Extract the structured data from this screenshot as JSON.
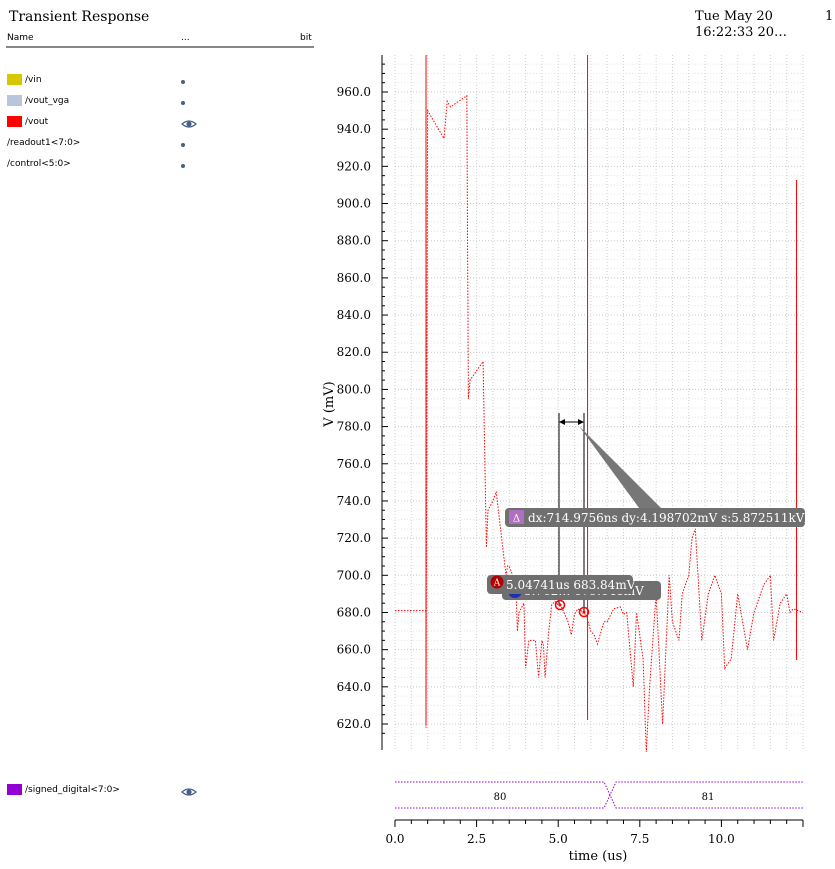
{
  "window": {
    "title": "Transient Response",
    "date": "Tue May 20",
    "time": "16:22:33 20…",
    "page_number": "1"
  },
  "signal_list": {
    "headers": {
      "name": "Name",
      "visibility": "...",
      "unit": "bit"
    },
    "signals": [
      {
        "name": "/vin",
        "color": "#d6c800",
        "visible": false
      },
      {
        "name": "/vout_vga",
        "color": "#b8c6dc",
        "visible": false
      },
      {
        "name": "/vout",
        "color": "#ff0000",
        "visible": true
      },
      {
        "name": "/readout1<7:0>",
        "color": "",
        "visible": false
      },
      {
        "name": "/control<5:0>",
        "color": "",
        "visible": false
      }
    ],
    "digital_signal": {
      "name": "/signed_digital<7:0>",
      "color": "#9400d3",
      "visible": true
    }
  },
  "plot": {
    "ylabel": "V (mV)",
    "xlabel": "time (us)",
    "y_ticks": [
      "960.0",
      "940.0",
      "920.0",
      "900.0",
      "880.0",
      "860.0",
      "840.0",
      "820.0",
      "800.0",
      "780.0",
      "760.0",
      "740.0",
      "720.0",
      "700.0",
      "680.0",
      "660.0",
      "640.0",
      "620.0"
    ],
    "x_ticks": [
      "0.0",
      "2.5",
      "5.0",
      "7.5",
      "10.0"
    ],
    "trace_color": "#ff0000",
    "digital_labels": [
      "80",
      "81"
    ],
    "marker_a_label": "5.04741us 683.84mV",
    "marker_a_icon": "A",
    "marker_b_label": "5.762… 679.641mV",
    "delta_label": "dx:714.9756ns dy:4.198702mV s:5.872511kV/s",
    "delta_icon": "Δ"
  },
  "chart_data": {
    "type": "line",
    "xlabel": "time (us)",
    "ylabel": "V (mV)",
    "xlim": [
      0,
      12.5
    ],
    "ylim": [
      605,
      978
    ],
    "series": [
      {
        "name": "/vout",
        "x": [
          0,
          0.9,
          0.95,
          0.95,
          1.0,
          1.5,
          1.6,
          1.7,
          2.2,
          2.25,
          2.3,
          2.7,
          2.8,
          2.85,
          3.0,
          3.1,
          3.4,
          3.45,
          3.5,
          3.7,
          3.75,
          3.8,
          3.95,
          4.0,
          4.1,
          4.3,
          4.4,
          4.5,
          4.55,
          4.6,
          4.7,
          4.8,
          4.9,
          5.0,
          5.05,
          5.1,
          5.3,
          5.4,
          5.5,
          5.6,
          5.7,
          5.76,
          5.8,
          5.9,
          6.0,
          6.1,
          6.2,
          6.4,
          6.5,
          6.7,
          6.9,
          7.0,
          7.1,
          7.3,
          7.4,
          7.6,
          7.7,
          7.8,
          8.0,
          8.2,
          8.4,
          8.5,
          8.7,
          8.8,
          9.0,
          9.1,
          9.2,
          9.4,
          9.6,
          9.8,
          10.0,
          10.1,
          10.3,
          10.5,
          10.8,
          11.0,
          11.3,
          11.5,
          11.6,
          11.8,
          12.0,
          12.1,
          12.2,
          12.5
        ],
        "y": [
          681,
          681,
          681,
          618,
          950,
          935,
          955,
          952,
          958,
          795,
          805,
          815,
          715,
          735,
          740,
          745,
          700,
          705,
          705,
          695,
          670,
          680,
          685,
          650,
          665,
          665,
          645,
          665,
          662,
          645,
          668,
          684,
          686,
          684,
          683.8,
          683,
          675,
          668,
          679,
          682,
          681,
          679.6,
          680,
          676,
          670,
          668,
          663,
          675,
          675,
          682,
          683,
          679,
          680,
          640,
          680,
          655,
          605,
          640,
          690,
          620,
          700,
          675,
          665,
          690,
          700,
          720,
          725,
          665,
          690,
          700,
          690,
          650,
          655,
          690,
          660,
          680,
          695,
          700,
          665,
          685,
          690,
          680,
          682,
          680
        ]
      }
    ]
  }
}
